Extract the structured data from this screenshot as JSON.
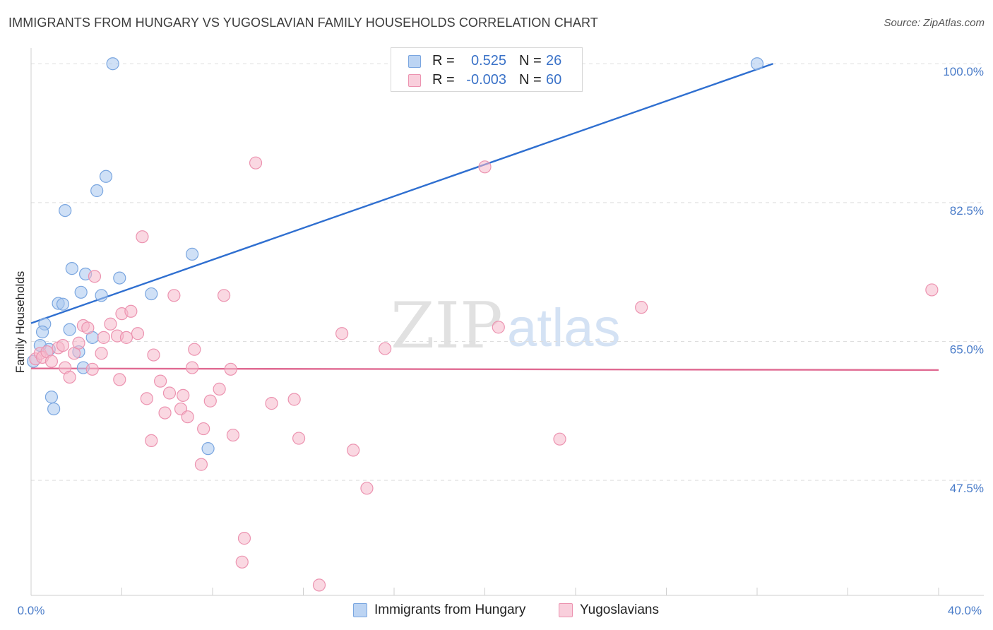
{
  "title": "IMMIGRANTS FROM HUNGARY VS YUGOSLAVIAN FAMILY HOUSEHOLDS CORRELATION CHART",
  "source": "Source: ZipAtlas.com",
  "watermark": {
    "zip": "ZIP",
    "atlas": "atlas"
  },
  "stats": [
    {
      "r_label": "R =",
      "r_value": "0.525",
      "n_label": "N =",
      "n_value": "26"
    },
    {
      "r_label": "R =",
      "r_value": "-0.003",
      "n_label": "N =",
      "n_value": "60"
    }
  ],
  "chart_data": {
    "type": "scatter",
    "title": "IMMIGRANTS FROM HUNGARY VS YUGOSLAVIAN FAMILY HOUSEHOLDS CORRELATION CHART",
    "xlabel": "",
    "ylabel": "Family Households",
    "xlim": [
      0,
      40
    ],
    "ylim": [
      33,
      101
    ],
    "x_tick_labels": [
      "0.0%",
      "40.0%"
    ],
    "y_ticks": [
      47.5,
      65.0,
      82.5,
      100.0
    ],
    "y_tick_labels": [
      "47.5%",
      "65.0%",
      "82.5%",
      "100.0%"
    ],
    "grid": true,
    "legend_position": "bottom-center",
    "series": [
      {
        "name": "Immigrants from Hungary",
        "color": "#a8c6ee",
        "stroke": "#7aa6e0",
        "trend_color": "#2f6fd0",
        "trend": {
          "x": [
            0,
            32.7
          ],
          "y": [
            67.3,
            100.0
          ]
        },
        "points": [
          {
            "x": 0.1,
            "y": 62.5
          },
          {
            "x": 0.4,
            "y": 64.5
          },
          {
            "x": 0.6,
            "y": 67.2
          },
          {
            "x": 0.5,
            "y": 66.2
          },
          {
            "x": 0.8,
            "y": 64.0
          },
          {
            "x": 0.9,
            "y": 58.0
          },
          {
            "x": 1.0,
            "y": 56.5
          },
          {
            "x": 1.2,
            "y": 69.8
          },
          {
            "x": 1.4,
            "y": 69.7
          },
          {
            "x": 1.5,
            "y": 81.5
          },
          {
            "x": 1.7,
            "y": 66.5
          },
          {
            "x": 1.8,
            "y": 74.2
          },
          {
            "x": 2.1,
            "y": 63.7
          },
          {
            "x": 2.2,
            "y": 71.2
          },
          {
            "x": 2.4,
            "y": 73.5
          },
          {
            "x": 2.3,
            "y": 61.7
          },
          {
            "x": 2.7,
            "y": 65.5
          },
          {
            "x": 2.9,
            "y": 84.0
          },
          {
            "x": 3.1,
            "y": 70.8
          },
          {
            "x": 3.3,
            "y": 85.8
          },
          {
            "x": 3.6,
            "y": 100.0
          },
          {
            "x": 3.9,
            "y": 73.0
          },
          {
            "x": 5.3,
            "y": 71.0
          },
          {
            "x": 7.1,
            "y": 76.0
          },
          {
            "x": 7.8,
            "y": 51.5
          },
          {
            "x": 32.0,
            "y": 100.0
          }
        ]
      },
      {
        "name": "Yugoslavians",
        "color": "#f5b8cb",
        "stroke": "#ec93b0",
        "trend_color": "#e06a92",
        "trend": {
          "x": [
            0,
            40
          ],
          "y": [
            61.6,
            61.4
          ]
        },
        "points": [
          {
            "x": 0.2,
            "y": 62.8
          },
          {
            "x": 0.4,
            "y": 63.5
          },
          {
            "x": 0.5,
            "y": 63.0
          },
          {
            "x": 0.7,
            "y": 63.7
          },
          {
            "x": 0.9,
            "y": 62.5
          },
          {
            "x": 1.2,
            "y": 64.2
          },
          {
            "x": 1.4,
            "y": 64.5
          },
          {
            "x": 1.5,
            "y": 61.7
          },
          {
            "x": 1.7,
            "y": 60.5
          },
          {
            "x": 1.9,
            "y": 63.5
          },
          {
            "x": 2.1,
            "y": 64.8
          },
          {
            "x": 2.3,
            "y": 67.0
          },
          {
            "x": 2.5,
            "y": 66.7
          },
          {
            "x": 2.7,
            "y": 61.5
          },
          {
            "x": 2.8,
            "y": 73.2
          },
          {
            "x": 3.1,
            "y": 63.5
          },
          {
            "x": 3.2,
            "y": 65.5
          },
          {
            "x": 3.5,
            "y": 67.2
          },
          {
            "x": 3.8,
            "y": 65.7
          },
          {
            "x": 3.9,
            "y": 60.2
          },
          {
            "x": 4.0,
            "y": 68.5
          },
          {
            "x": 4.2,
            "y": 65.5
          },
          {
            "x": 4.4,
            "y": 68.8
          },
          {
            "x": 4.7,
            "y": 66.0
          },
          {
            "x": 4.9,
            "y": 78.2
          },
          {
            "x": 5.1,
            "y": 57.8
          },
          {
            "x": 5.3,
            "y": 52.5
          },
          {
            "x": 5.4,
            "y": 63.3
          },
          {
            "x": 5.7,
            "y": 60.0
          },
          {
            "x": 5.9,
            "y": 56.0
          },
          {
            "x": 6.1,
            "y": 58.5
          },
          {
            "x": 6.3,
            "y": 70.8
          },
          {
            "x": 6.6,
            "y": 56.5
          },
          {
            "x": 6.7,
            "y": 58.2
          },
          {
            "x": 6.9,
            "y": 55.5
          },
          {
            "x": 7.1,
            "y": 61.7
          },
          {
            "x": 7.2,
            "y": 64.0
          },
          {
            "x": 7.5,
            "y": 49.5
          },
          {
            "x": 7.6,
            "y": 54.0
          },
          {
            "x": 7.9,
            "y": 57.5
          },
          {
            "x": 8.3,
            "y": 59.0
          },
          {
            "x": 8.5,
            "y": 70.8
          },
          {
            "x": 8.8,
            "y": 61.5
          },
          {
            "x": 8.9,
            "y": 53.2
          },
          {
            "x": 9.3,
            "y": 37.2
          },
          {
            "x": 9.4,
            "y": 40.2
          },
          {
            "x": 9.9,
            "y": 87.5
          },
          {
            "x": 10.6,
            "y": 57.2
          },
          {
            "x": 11.6,
            "y": 57.7
          },
          {
            "x": 11.8,
            "y": 52.8
          },
          {
            "x": 12.7,
            "y": 34.3
          },
          {
            "x": 13.7,
            "y": 66.0
          },
          {
            "x": 14.2,
            "y": 51.3
          },
          {
            "x": 14.8,
            "y": 46.5
          },
          {
            "x": 15.6,
            "y": 64.1
          },
          {
            "x": 20.0,
            "y": 87.0
          },
          {
            "x": 20.6,
            "y": 66.8
          },
          {
            "x": 23.3,
            "y": 52.7
          },
          {
            "x": 26.9,
            "y": 69.3
          },
          {
            "x": 39.7,
            "y": 71.5
          }
        ]
      }
    ]
  }
}
